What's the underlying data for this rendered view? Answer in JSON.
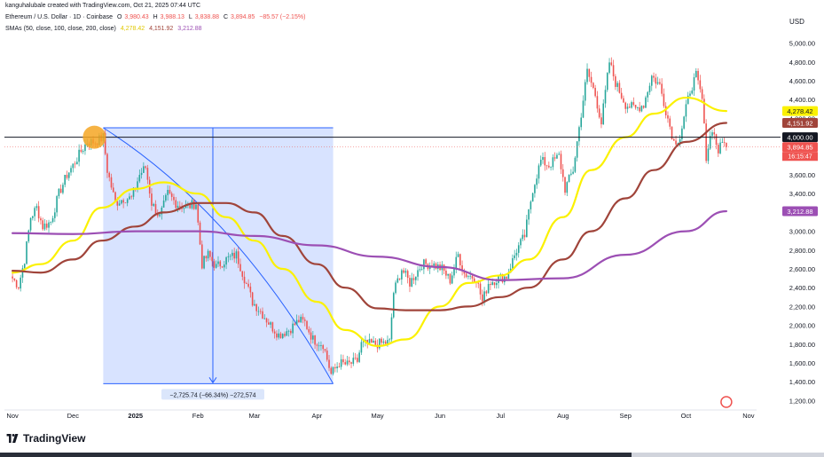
{
  "header": {
    "credit": "kanguhalubale created with TradingView.com, Oct 21, 2025 07:44 UTC",
    "symbol": "Ethereum / U.S. Dollar · 1D · Coinbase",
    "o_label": "O",
    "o_value": "3,980.43",
    "h_label": "H",
    "h_value": "3,988.13",
    "l_label": "L",
    "l_value": "3,838.88",
    "c_label": "C",
    "c_value": "3,894.85",
    "change": "−85.57 (−2.15%)",
    "sma_label": "SMAs (50, close, 100, close, 200, close)",
    "sma_values": [
      "4,278.42",
      "4,151.92",
      "3,212.88"
    ]
  },
  "footer": {
    "logo_text": "TradingView"
  },
  "colors": {
    "up": "#26a69a",
    "down": "#ef5350",
    "sma50": "#fbf100",
    "sma100": "#a0443a",
    "sma200": "#9c4fb4",
    "measure_fill": "#2962ff",
    "measure_line": "#2962ff",
    "circle": "#f5a623",
    "hline": "#131722"
  },
  "chart_data": {
    "type": "candlestick",
    "title": "Ethereum / U.S. Dollar · 1D · Coinbase",
    "currency_label": "USD",
    "ylim": [
      1100,
      5100
    ],
    "y_ticks": [
      1200,
      1400,
      1600,
      1800,
      2000,
      2200,
      2400,
      2600,
      2800,
      3000,
      3200,
      3400,
      3600,
      3800,
      4000,
      4200,
      4400,
      4600,
      4800,
      5000
    ],
    "x_ticks": [
      {
        "label": "Nov",
        "date": "2024-11-01"
      },
      {
        "label": "Dec",
        "date": "2024-12-01"
      },
      {
        "label": "2025",
        "date": "2025-01-01"
      },
      {
        "label": "Feb",
        "date": "2025-02-01"
      },
      {
        "label": "Mar",
        "date": "2025-03-01"
      },
      {
        "label": "Apr",
        "date": "2025-04-01"
      },
      {
        "label": "May",
        "date": "2025-05-01"
      },
      {
        "label": "Jun",
        "date": "2025-06-01"
      },
      {
        "label": "Jul",
        "date": "2025-07-01"
      },
      {
        "label": "Aug",
        "date": "2025-08-01"
      },
      {
        "label": "Sep",
        "date": "2025-09-01"
      },
      {
        "label": "Oct",
        "date": "2025-10-01"
      },
      {
        "label": "Nov",
        "date": "2025-11-01"
      }
    ],
    "price_anchors": [
      [
        "2024-11-01",
        2500
      ],
      [
        "2024-11-04",
        2420
      ],
      [
        "2024-11-07",
        2700
      ],
      [
        "2024-11-10",
        3150
      ],
      [
        "2024-11-13",
        3250
      ],
      [
        "2024-11-16",
        3050
      ],
      [
        "2024-11-20",
        3100
      ],
      [
        "2024-11-24",
        3400
      ],
      [
        "2024-11-28",
        3600
      ],
      [
        "2024-12-01",
        3700
      ],
      [
        "2024-12-05",
        3850
      ],
      [
        "2024-12-08",
        3950
      ],
      [
        "2024-12-12",
        3950
      ],
      [
        "2024-12-16",
        4000
      ],
      [
        "2024-12-18",
        3650
      ],
      [
        "2024-12-22",
        3300
      ],
      [
        "2024-12-26",
        3350
      ],
      [
        "2024-12-30",
        3350
      ],
      [
        "2025-01-03",
        3600
      ],
      [
        "2025-01-06",
        3680
      ],
      [
        "2025-01-09",
        3300
      ],
      [
        "2025-01-13",
        3150
      ],
      [
        "2025-01-17",
        3400
      ],
      [
        "2025-01-21",
        3300
      ],
      [
        "2025-01-26",
        3250
      ],
      [
        "2025-01-31",
        3300
      ],
      [
        "2025-02-03",
        2650
      ],
      [
        "2025-02-06",
        2750
      ],
      [
        "2025-02-10",
        2620
      ],
      [
        "2025-02-15",
        2700
      ],
      [
        "2025-02-20",
        2750
      ],
      [
        "2025-02-24",
        2500
      ],
      [
        "2025-02-28",
        2250
      ],
      [
        "2025-03-04",
        2150
      ],
      [
        "2025-03-09",
        2000
      ],
      [
        "2025-03-13",
        1900
      ],
      [
        "2025-03-18",
        1950
      ],
      [
        "2025-03-23",
        2050
      ],
      [
        "2025-03-26",
        2030
      ],
      [
        "2025-03-30",
        1850
      ],
      [
        "2025-04-04",
        1800
      ],
      [
        "2025-04-08",
        1480
      ],
      [
        "2025-04-12",
        1600
      ],
      [
        "2025-04-16",
        1580
      ],
      [
        "2025-04-21",
        1620
      ],
      [
        "2025-04-23",
        1800
      ],
      [
        "2025-04-30",
        1800
      ],
      [
        "2025-05-07",
        1820
      ],
      [
        "2025-05-09",
        2350
      ],
      [
        "2025-05-13",
        2600
      ],
      [
        "2025-05-17",
        2450
      ],
      [
        "2025-05-23",
        2650
      ],
      [
        "2025-05-28",
        2650
      ],
      [
        "2025-06-02",
        2600
      ],
      [
        "2025-06-06",
        2480
      ],
      [
        "2025-06-10",
        2750
      ],
      [
        "2025-06-13",
        2550
      ],
      [
        "2025-06-19",
        2500
      ],
      [
        "2025-06-22",
        2250
      ],
      [
        "2025-06-25",
        2450
      ],
      [
        "2025-06-30",
        2500
      ],
      [
        "2025-07-04",
        2520
      ],
      [
        "2025-07-09",
        2800
      ],
      [
        "2025-07-13",
        2950
      ],
      [
        "2025-07-17",
        3450
      ],
      [
        "2025-07-21",
        3750
      ],
      [
        "2025-07-25",
        3700
      ],
      [
        "2025-07-30",
        3800
      ],
      [
        "2025-08-02",
        3450
      ],
      [
        "2025-08-06",
        3650
      ],
      [
        "2025-08-09",
        4100
      ],
      [
        "2025-08-13",
        4700
      ],
      [
        "2025-08-17",
        4450
      ],
      [
        "2025-08-20",
        4150
      ],
      [
        "2025-08-24",
        4800
      ],
      [
        "2025-08-27",
        4580
      ],
      [
        "2025-09-01",
        4350
      ],
      [
        "2025-09-06",
        4300
      ],
      [
        "2025-09-10",
        4350
      ],
      [
        "2025-09-14",
        4650
      ],
      [
        "2025-09-18",
        4550
      ],
      [
        "2025-09-22",
        4200
      ],
      [
        "2025-09-25",
        3950
      ],
      [
        "2025-09-28",
        4000
      ],
      [
        "2025-10-03",
        4500
      ],
      [
        "2025-10-06",
        4650
      ],
      [
        "2025-10-09",
        4400
      ],
      [
        "2025-10-11",
        3800
      ],
      [
        "2025-10-14",
        4100
      ],
      [
        "2025-10-17",
        3850
      ],
      [
        "2025-10-20",
        3980
      ],
      [
        "2025-10-21",
        3895
      ]
    ],
    "series": [
      {
        "name": "SMA 50",
        "color": "#fbf100",
        "points": [
          [
            "2024-11-01",
            2560
          ],
          [
            "2024-11-15",
            2650
          ],
          [
            "2024-12-01",
            2900
          ],
          [
            "2024-12-15",
            3250
          ],
          [
            "2025-01-01",
            3450
          ],
          [
            "2025-01-15",
            3520
          ],
          [
            "2025-02-01",
            3400
          ],
          [
            "2025-02-15",
            3150
          ],
          [
            "2025-03-01",
            2900
          ],
          [
            "2025-03-15",
            2600
          ],
          [
            "2025-04-01",
            2250
          ],
          [
            "2025-04-15",
            1950
          ],
          [
            "2025-05-01",
            1780
          ],
          [
            "2025-05-15",
            1850
          ],
          [
            "2025-06-01",
            2200
          ],
          [
            "2025-06-15",
            2450
          ],
          [
            "2025-07-01",
            2530
          ],
          [
            "2025-07-15",
            2700
          ],
          [
            "2025-08-01",
            3150
          ],
          [
            "2025-08-15",
            3650
          ],
          [
            "2025-09-01",
            4000
          ],
          [
            "2025-09-15",
            4250
          ],
          [
            "2025-10-01",
            4420
          ],
          [
            "2025-10-21",
            4278
          ]
        ]
      },
      {
        "name": "SMA 100",
        "color": "#a0443a",
        "points": [
          [
            "2024-11-01",
            2580
          ],
          [
            "2024-11-15",
            2560
          ],
          [
            "2024-12-01",
            2700
          ],
          [
            "2024-12-15",
            2900
          ],
          [
            "2025-01-01",
            3050
          ],
          [
            "2025-01-15",
            3200
          ],
          [
            "2025-02-01",
            3300
          ],
          [
            "2025-02-15",
            3300
          ],
          [
            "2025-03-01",
            3200
          ],
          [
            "2025-03-15",
            2950
          ],
          [
            "2025-04-01",
            2650
          ],
          [
            "2025-04-15",
            2400
          ],
          [
            "2025-05-01",
            2180
          ],
          [
            "2025-05-15",
            2160
          ],
          [
            "2025-06-01",
            2160
          ],
          [
            "2025-06-15",
            2200
          ],
          [
            "2025-07-01",
            2300
          ],
          [
            "2025-07-15",
            2400
          ],
          [
            "2025-08-01",
            2700
          ],
          [
            "2025-08-15",
            3000
          ],
          [
            "2025-09-01",
            3350
          ],
          [
            "2025-09-15",
            3650
          ],
          [
            "2025-10-01",
            3950
          ],
          [
            "2025-10-21",
            4152
          ]
        ]
      },
      {
        "name": "SMA 200",
        "color": "#9c4fb4",
        "points": [
          [
            "2024-11-01",
            2980
          ],
          [
            "2024-12-01",
            2970
          ],
          [
            "2025-01-01",
            3000
          ],
          [
            "2025-02-01",
            3000
          ],
          [
            "2025-03-01",
            2950
          ],
          [
            "2025-04-01",
            2850
          ],
          [
            "2025-05-01",
            2730
          ],
          [
            "2025-06-01",
            2620
          ],
          [
            "2025-07-01",
            2480
          ],
          [
            "2025-08-01",
            2500
          ],
          [
            "2025-09-01",
            2750
          ],
          [
            "2025-10-01",
            3000
          ],
          [
            "2025-10-21",
            3213
          ]
        ]
      }
    ],
    "price_labels": [
      {
        "value": 4278.42,
        "text": "4,278.42",
        "bg": "#fbf100",
        "fg": "#131722"
      },
      {
        "value": 4151.92,
        "text": "4,151.92",
        "bg": "#a0443a",
        "fg": "#ffffff"
      },
      {
        "value": 4000,
        "text": "4,000.00",
        "bg": "#131722",
        "fg": "#ffffff"
      },
      {
        "value": 3894.85,
        "text": "3,894.85",
        "bg": "#ef5350",
        "fg": "#ffffff"
      },
      {
        "value": 3212.88,
        "text": "3,212.88",
        "bg": "#9c4fb4",
        "fg": "#ffffff"
      }
    ],
    "countdown": "16:15:47",
    "horizontal_line": 4000,
    "measure": {
      "start_date": "2024-12-16",
      "end_date": "2025-04-09",
      "high": 4100,
      "low": 1380,
      "label": "−2,725.74 (−66.34%) −272,574"
    },
    "marker_circle": {
      "date": "2024-12-16",
      "value": 4000
    }
  }
}
